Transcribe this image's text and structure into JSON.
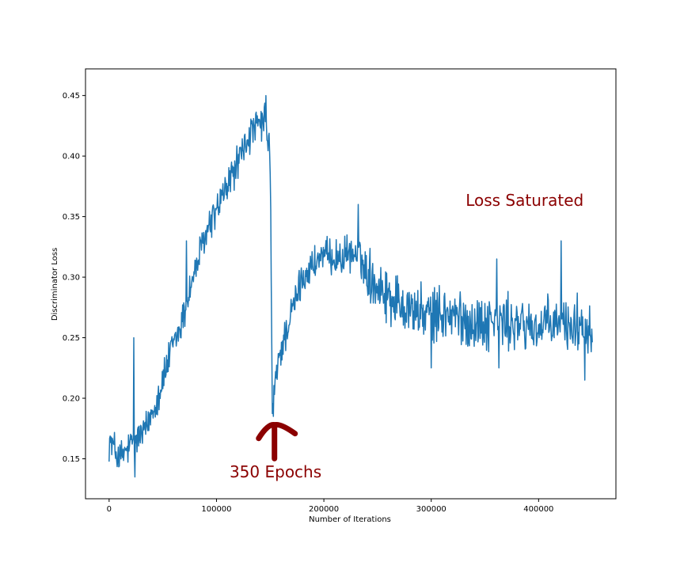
{
  "chart_data": {
    "type": "line",
    "xlabel": "Number of Iterations",
    "ylabel": "Discriminator Loss",
    "xlim": [
      -22000,
      472000
    ],
    "ylim": [
      0.117,
      0.472
    ],
    "xticks": [
      0,
      100000,
      200000,
      300000,
      400000
    ],
    "xtick_labels": [
      "0",
      "100000",
      "200000",
      "300000",
      "400000"
    ],
    "yticks": [
      0.15,
      0.2,
      0.25,
      0.3,
      0.35,
      0.4,
      0.45
    ],
    "ytick_labels": [
      "0.15",
      "0.20",
      "0.25",
      "0.30",
      "0.35",
      "0.40",
      "0.45"
    ],
    "grid": false,
    "colors": {
      "line": "#1f77b4",
      "annotation": "#8b0000"
    },
    "series": [
      {
        "points": [
          [
            0,
            0.165
          ],
          [
            5000,
            0.158
          ],
          [
            10000,
            0.15
          ],
          [
            15000,
            0.155
          ],
          [
            20000,
            0.16
          ],
          [
            25000,
            0.165
          ],
          [
            30000,
            0.17
          ],
          [
            35000,
            0.175
          ],
          [
            40000,
            0.19
          ],
          [
            45000,
            0.2
          ],
          [
            50000,
            0.215
          ],
          [
            55000,
            0.23
          ],
          [
            60000,
            0.245
          ],
          [
            65000,
            0.255
          ],
          [
            70000,
            0.27
          ],
          [
            75000,
            0.29
          ],
          [
            80000,
            0.305
          ],
          [
            85000,
            0.32
          ],
          [
            90000,
            0.335
          ],
          [
            95000,
            0.345
          ],
          [
            100000,
            0.355
          ],
          [
            105000,
            0.365
          ],
          [
            110000,
            0.375
          ],
          [
            115000,
            0.385
          ],
          [
            120000,
            0.395
          ],
          [
            125000,
            0.405
          ],
          [
            130000,
            0.415
          ],
          [
            135000,
            0.422
          ],
          [
            140000,
            0.425
          ],
          [
            145000,
            0.428
          ],
          [
            150000,
            0.405
          ],
          [
            152000,
            0.19
          ],
          [
            155000,
            0.215
          ],
          [
            160000,
            0.24
          ],
          [
            165000,
            0.255
          ],
          [
            170000,
            0.27
          ],
          [
            175000,
            0.285
          ],
          [
            180000,
            0.3
          ],
          [
            185000,
            0.305
          ],
          [
            190000,
            0.31
          ],
          [
            195000,
            0.315
          ],
          [
            200000,
            0.318
          ],
          [
            205000,
            0.315
          ],
          [
            210000,
            0.318
          ],
          [
            215000,
            0.315
          ],
          [
            220000,
            0.318
          ],
          [
            225000,
            0.32
          ],
          [
            230000,
            0.318
          ],
          [
            235000,
            0.315
          ],
          [
            240000,
            0.305
          ],
          [
            245000,
            0.3
          ],
          [
            250000,
            0.295
          ],
          [
            255000,
            0.29
          ],
          [
            260000,
            0.285
          ],
          [
            265000,
            0.282
          ],
          [
            270000,
            0.28
          ],
          [
            275000,
            0.278
          ],
          [
            280000,
            0.275
          ],
          [
            285000,
            0.272
          ],
          [
            290000,
            0.27
          ],
          [
            300000,
            0.268
          ],
          [
            310000,
            0.27
          ],
          [
            320000,
            0.268
          ],
          [
            330000,
            0.265
          ],
          [
            340000,
            0.262
          ],
          [
            350000,
            0.262
          ],
          [
            360000,
            0.265
          ],
          [
            370000,
            0.262
          ],
          [
            380000,
            0.26
          ],
          [
            390000,
            0.26
          ],
          [
            400000,
            0.258
          ],
          [
            410000,
            0.26
          ],
          [
            420000,
            0.262
          ],
          [
            430000,
            0.26
          ],
          [
            440000,
            0.262
          ],
          [
            450000,
            0.26
          ]
        ],
        "spikes": [
          [
            23000,
            0.25
          ],
          [
            24000,
            0.135
          ],
          [
            72000,
            0.33
          ],
          [
            146000,
            0.45
          ],
          [
            150000,
            0.385
          ],
          [
            153000,
            0.185
          ],
          [
            232000,
            0.36
          ],
          [
            237000,
            0.295
          ],
          [
            300000,
            0.225
          ],
          [
            361000,
            0.315
          ],
          [
            363000,
            0.225
          ],
          [
            421000,
            0.33
          ],
          [
            443000,
            0.215
          ]
        ]
      }
    ],
    "annotations": [
      {
        "text": "Loss Saturated",
        "x": 387000,
        "y": 0.359
      },
      {
        "text": "350 Epochs",
        "x": 155000,
        "y": 0.14,
        "arrow_tip": [
          154000,
          0.178
        ],
        "arrow_base": [
          154000,
          0.158
        ]
      }
    ]
  }
}
